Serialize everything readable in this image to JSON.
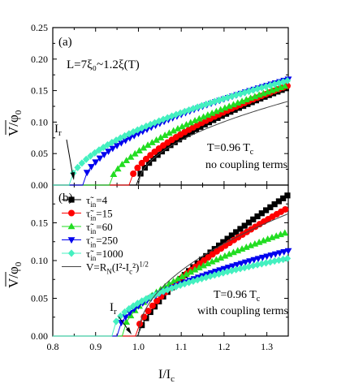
{
  "figure": {
    "xlabel_main": "I/I",
    "xlabel_sub": "c",
    "ylabel_main": "V/φ",
    "ylabel_sub": "0"
  },
  "chart_data": [
    {
      "type": "scatter",
      "panel": "(a)",
      "xlim": [
        0.8,
        1.35
      ],
      "ylim": [
        0,
        0.25
      ],
      "xticks": [
        0.8,
        0.9,
        1.0,
        1.1,
        1.2,
        1.3
      ],
      "yticks": [
        0.0,
        0.05,
        0.1,
        0.15,
        0.2,
        0.25
      ],
      "ytick_labels": [
        "0.00",
        "0.05",
        "0.10",
        "0.15",
        "0.20",
        "0.25"
      ],
      "show_xtick_labels": false,
      "annotations": {
        "panel_label": "(a)",
        "length": "L=7ξ₀~1.2ξ(T)",
        "temp_main": "T=0.96 T",
        "temp_sub": "c",
        "note": "no coupling terms",
        "ir_main": "I",
        "ir_sub": "r"
      },
      "series": [
        {
          "name": "4",
          "marker": "square",
          "color": "#000000",
          "x0": 0.995,
          "a": 0.155,
          "p": 0.6,
          "dx": 0.01
        },
        {
          "name": "15",
          "marker": "circle",
          "color": "#ff0000",
          "x0": 0.978,
          "a": 0.158,
          "p": 0.6,
          "dx": 0.01
        },
        {
          "name": "60",
          "marker": "triangle-up",
          "color": "#22dd22",
          "x0": 0.932,
          "a": 0.159,
          "p": 0.6,
          "dx": 0.01
        },
        {
          "name": "250",
          "marker": "triangle-down",
          "color": "#0000ee",
          "x0": 0.87,
          "a": 0.168,
          "p": 0.55,
          "dx": 0.01
        },
        {
          "name": "1000",
          "marker": "diamond",
          "color": "#44f0c0",
          "x0": 0.838,
          "a": 0.166,
          "p": 0.55,
          "dx": 0.01
        },
        {
          "name": "V=R_N(I²-I_c²)^1/2",
          "marker": "none",
          "color": "#444444",
          "x0": 1.0,
          "a": 0.133,
          "p": 0.5,
          "dx": 0.004
        }
      ]
    },
    {
      "type": "scatter",
      "panel": "(b)",
      "xlim": [
        0.8,
        1.35
      ],
      "ylim": [
        0,
        0.2
      ],
      "xticks": [
        0.8,
        0.9,
        1.0,
        1.1,
        1.2,
        1.3
      ],
      "xtick_labels": [
        "0.8",
        "0.9",
        "1.0",
        "1.1",
        "1.2",
        "1.3"
      ],
      "yticks": [
        0.0,
        0.05,
        0.1,
        0.15
      ],
      "ytick_labels": [
        "0.00",
        "0.05",
        "0.10",
        "0.15"
      ],
      "annotations": {
        "panel_label": "(b)",
        "temp_main": "T=0.96 T",
        "temp_sub": "c",
        "note": "with coupling terms",
        "ir_main": "I",
        "ir_sub": "r"
      },
      "legend": [
        {
          "pre": "τ̃",
          "sub": "in",
          "post": "=4",
          "marker": "square",
          "color": "#000000"
        },
        {
          "pre": "τ̃",
          "sub": "in",
          "post": "=15",
          "marker": "circle",
          "color": "#ff0000"
        },
        {
          "pre": "τ̃",
          "sub": "in",
          "post": "=60",
          "marker": "triangle-up",
          "color": "#22dd22"
        },
        {
          "pre": "τ̃",
          "sub": "in",
          "post": "=250",
          "marker": "triangle-down",
          "color": "#0000ee"
        },
        {
          "pre": "τ̃",
          "sub": "in",
          "post": "=1000",
          "marker": "diamond",
          "color": "#44f0c0"
        },
        {
          "pre": "V=R",
          "sub": "N",
          "post": "(I²-I",
          "sub2": "c",
          "post2": "²)",
          "sup": "1/2",
          "marker": "line",
          "color": "#444444"
        }
      ],
      "series": [
        {
          "name": "4",
          "marker": "square",
          "color": "#000000",
          "x0": 0.998,
          "a": 0.187,
          "p": 0.72,
          "dx": 0.01
        },
        {
          "name": "15",
          "marker": "circle",
          "color": "#ff0000",
          "x0": 0.993,
          "a": 0.17,
          "p": 0.66,
          "dx": 0.01
        },
        {
          "name": "60",
          "marker": "triangle-up",
          "color": "#22dd22",
          "x0": 0.962,
          "a": 0.138,
          "p": 0.55,
          "dx": 0.01
        },
        {
          "name": "250",
          "marker": "triangle-down",
          "color": "#0000ee",
          "x0": 0.95,
          "a": 0.113,
          "p": 0.5,
          "dx": 0.01
        },
        {
          "name": "1000",
          "marker": "diamond",
          "color": "#44f0c0",
          "x0": 0.938,
          "a": 0.103,
          "p": 0.45,
          "dx": 0.01
        },
        {
          "name": "V=R_N(I²-I_c²)^1/2",
          "marker": "none",
          "color": "#444444",
          "x0": 1.0,
          "a": 0.162,
          "p": 0.5,
          "dx": 0.004
        }
      ]
    }
  ]
}
